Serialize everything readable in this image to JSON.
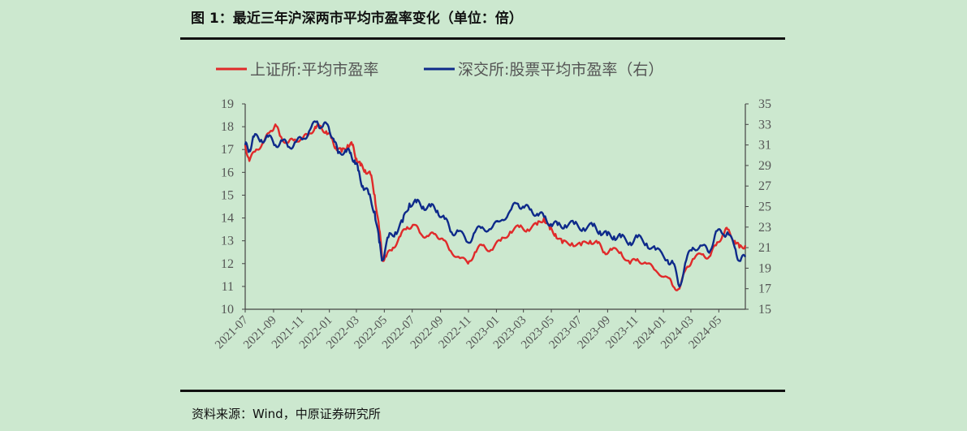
{
  "figure": {
    "title": "图 1：最近三年沪深两市平均市盈率变化（单位：倍）",
    "source": "资料来源：Wind，中原证券研究所"
  },
  "colors": {
    "background": "#cce8cf",
    "series_red": "#e02a2a",
    "series_blue": "#0e2a8a",
    "axis": "#444444"
  },
  "chart_data": {
    "type": "line",
    "legend_position": "top",
    "grid": false,
    "x_tick_labels": [
      "2021-07",
      "2021-09",
      "2021-11",
      "2022-01",
      "2022-03",
      "2022-05",
      "2022-07",
      "2022-09",
      "2022-11",
      "2023-01",
      "2023-03",
      "2023-05",
      "2023-07",
      "2023-09",
      "2023-11",
      "2024-01",
      "2024-03",
      "2024-05"
    ],
    "x_range": [
      "2021-07-01",
      "2024-06-28"
    ],
    "y_left": {
      "ylim": [
        10,
        19
      ],
      "ticks": [
        10,
        11,
        12,
        13,
        14,
        15,
        16,
        17,
        18,
        19
      ]
    },
    "y_right": {
      "ylim": [
        15,
        35
      ],
      "ticks": [
        15,
        17,
        19,
        21,
        23,
        25,
        27,
        29,
        31,
        33,
        35
      ]
    },
    "series": [
      {
        "name": "上证所:平均市盈率",
        "axis": "left",
        "color": "#e02a2a",
        "points": [
          [
            "2021-07-01",
            17.2
          ],
          [
            "2021-07-10",
            16.5
          ],
          [
            "2021-07-25",
            17.0
          ],
          [
            "2021-08-10",
            17.3
          ],
          [
            "2021-08-25",
            17.8
          ],
          [
            "2021-09-05",
            18.1
          ],
          [
            "2021-09-15",
            17.6
          ],
          [
            "2021-10-01",
            17.3
          ],
          [
            "2021-10-15",
            17.4
          ],
          [
            "2021-11-01",
            17.5
          ],
          [
            "2021-11-15",
            17.6
          ],
          [
            "2021-12-01",
            18.0
          ],
          [
            "2021-12-10",
            18.0
          ],
          [
            "2021-12-25",
            17.8
          ],
          [
            "2022-01-05",
            17.5
          ],
          [
            "2022-01-15",
            17.1
          ],
          [
            "2022-01-28",
            16.9
          ],
          [
            "2022-02-10",
            17.2
          ],
          [
            "2022-02-20",
            17.2
          ],
          [
            "2022-03-01",
            16.6
          ],
          [
            "2022-03-10",
            16.3
          ],
          [
            "2022-03-20",
            16.1
          ],
          [
            "2022-04-01",
            15.9
          ],
          [
            "2022-04-10",
            15.0
          ],
          [
            "2022-04-20",
            13.5
          ],
          [
            "2022-04-27",
            12.2
          ],
          [
            "2022-05-05",
            12.3
          ],
          [
            "2022-05-20",
            12.7
          ],
          [
            "2022-06-05",
            13.2
          ],
          [
            "2022-06-20",
            13.6
          ],
          [
            "2022-07-05",
            13.7
          ],
          [
            "2022-07-20",
            13.3
          ],
          [
            "2022-08-05",
            13.2
          ],
          [
            "2022-08-20",
            13.3
          ],
          [
            "2022-09-05",
            13.1
          ],
          [
            "2022-09-20",
            12.6
          ],
          [
            "2022-10-10",
            12.3
          ],
          [
            "2022-10-31",
            12.0
          ],
          [
            "2022-11-15",
            12.5
          ],
          [
            "2022-12-01",
            12.8
          ],
          [
            "2022-12-20",
            12.6
          ],
          [
            "2023-01-10",
            13.0
          ],
          [
            "2023-01-31",
            13.4
          ],
          [
            "2023-02-20",
            13.6
          ],
          [
            "2023-03-10",
            13.5
          ],
          [
            "2023-03-31",
            13.7
          ],
          [
            "2023-04-15",
            14.0
          ],
          [
            "2023-04-28",
            13.5
          ],
          [
            "2023-05-10",
            13.3
          ],
          [
            "2023-05-25",
            12.9
          ],
          [
            "2023-06-15",
            12.9
          ],
          [
            "2023-07-05",
            12.8
          ],
          [
            "2023-07-25",
            13.0
          ],
          [
            "2023-08-10",
            12.9
          ],
          [
            "2023-08-25",
            12.5
          ],
          [
            "2023-09-10",
            12.6
          ],
          [
            "2023-09-30",
            12.5
          ],
          [
            "2023-10-20",
            12.0
          ],
          [
            "2023-11-05",
            12.2
          ],
          [
            "2023-11-25",
            12.0
          ],
          [
            "2023-12-15",
            11.7
          ],
          [
            "2024-01-10",
            11.4
          ],
          [
            "2024-01-22",
            11.0
          ],
          [
            "2024-02-05",
            10.9
          ],
          [
            "2024-02-20",
            11.8
          ],
          [
            "2024-03-05",
            12.2
          ],
          [
            "2024-03-25",
            12.4
          ],
          [
            "2024-04-10",
            12.3
          ],
          [
            "2024-04-25",
            12.8
          ],
          [
            "2024-05-10",
            13.3
          ],
          [
            "2024-05-20",
            13.5
          ],
          [
            "2024-06-05",
            13.0
          ],
          [
            "2024-06-15",
            12.7
          ],
          [
            "2024-06-28",
            12.8
          ]
        ]
      },
      {
        "name": "深交所:股票平均市盈率（右）",
        "axis": "right",
        "color": "#0e2a8a",
        "points": [
          [
            "2021-07-01",
            31.0
          ],
          [
            "2021-07-10",
            30.5
          ],
          [
            "2021-07-20",
            31.8
          ],
          [
            "2021-08-05",
            31.5
          ],
          [
            "2021-08-20",
            31.8
          ],
          [
            "2021-09-05",
            31.0
          ],
          [
            "2021-09-20",
            31.4
          ],
          [
            "2021-10-05",
            30.8
          ],
          [
            "2021-10-20",
            31.3
          ],
          [
            "2021-11-05",
            31.6
          ],
          [
            "2021-11-20",
            32.5
          ],
          [
            "2021-12-05",
            33.3
          ],
          [
            "2021-12-15",
            32.7
          ],
          [
            "2021-12-28",
            33.0
          ],
          [
            "2022-01-10",
            31.6
          ],
          [
            "2022-01-20",
            30.2
          ],
          [
            "2022-02-05",
            30.5
          ],
          [
            "2022-02-15",
            30.2
          ],
          [
            "2022-02-25",
            29.5
          ],
          [
            "2022-03-05",
            28.5
          ],
          [
            "2022-03-15",
            27.0
          ],
          [
            "2022-03-28",
            26.2
          ],
          [
            "2022-04-10",
            24.5
          ],
          [
            "2022-04-20",
            21.5
          ],
          [
            "2022-04-27",
            19.8
          ],
          [
            "2022-05-10",
            22.0
          ],
          [
            "2022-05-25",
            22.5
          ],
          [
            "2022-06-10",
            23.5
          ],
          [
            "2022-06-25",
            25.3
          ],
          [
            "2022-07-10",
            25.4
          ],
          [
            "2022-07-25",
            25.0
          ],
          [
            "2022-08-10",
            25.0
          ],
          [
            "2022-08-25",
            24.6
          ],
          [
            "2022-09-10",
            23.8
          ],
          [
            "2022-09-25",
            22.5
          ],
          [
            "2022-10-10",
            22.6
          ],
          [
            "2022-10-31",
            21.5
          ],
          [
            "2022-11-15",
            22.5
          ],
          [
            "2022-12-01",
            23.0
          ],
          [
            "2022-12-20",
            22.8
          ],
          [
            "2023-01-10",
            23.6
          ],
          [
            "2023-01-31",
            24.6
          ],
          [
            "2023-02-15",
            25.3
          ],
          [
            "2023-02-28",
            25.0
          ],
          [
            "2023-03-15",
            24.7
          ],
          [
            "2023-03-31",
            24.3
          ],
          [
            "2023-04-15",
            24.0
          ],
          [
            "2023-04-30",
            23.3
          ],
          [
            "2023-05-15",
            23.2
          ],
          [
            "2023-05-31",
            23.2
          ],
          [
            "2023-06-20",
            23.3
          ],
          [
            "2023-07-10",
            22.9
          ],
          [
            "2023-07-31",
            23.1
          ],
          [
            "2023-08-15",
            22.6
          ],
          [
            "2023-08-31",
            22.2
          ],
          [
            "2023-09-15",
            22.1
          ],
          [
            "2023-09-30",
            22.0
          ],
          [
            "2023-10-20",
            21.5
          ],
          [
            "2023-11-05",
            22.0
          ],
          [
            "2023-11-25",
            21.4
          ],
          [
            "2023-12-15",
            20.8
          ],
          [
            "2024-01-10",
            19.8
          ],
          [
            "2024-01-22",
            19.5
          ],
          [
            "2024-02-05",
            17.2
          ],
          [
            "2024-02-20",
            19.8
          ],
          [
            "2024-03-05",
            21.0
          ],
          [
            "2024-03-25",
            21.2
          ],
          [
            "2024-04-10",
            20.5
          ],
          [
            "2024-04-25",
            22.6
          ],
          [
            "2024-05-10",
            22.3
          ],
          [
            "2024-05-20",
            22.5
          ],
          [
            "2024-06-05",
            21.0
          ],
          [
            "2024-06-15",
            19.7
          ],
          [
            "2024-06-28",
            20.1
          ]
        ]
      }
    ]
  }
}
